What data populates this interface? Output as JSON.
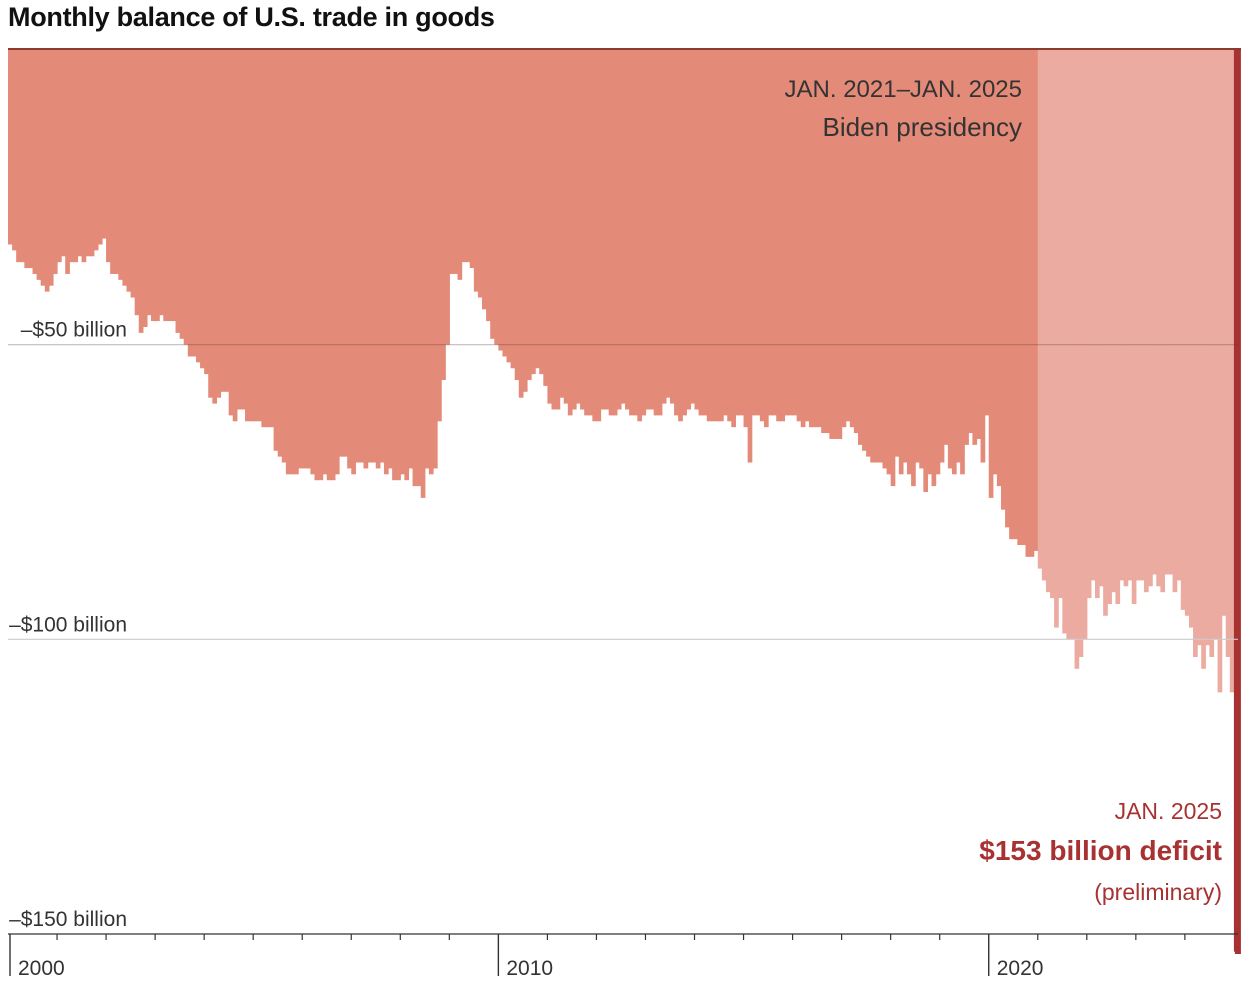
{
  "title": "Monthly balance of U.S. trade in goods",
  "colors": {
    "bar": "#e48a78",
    "biden_bar": "#ecaba1",
    "latest": "#a83232",
    "grid": "#cccccc",
    "axis": "#333333",
    "top_rule": "#8b3a2e"
  },
  "annotations": {
    "biden_dates": "JAN. 2021–JAN. 2025",
    "biden_label": "Biden presidency",
    "latest_date": "JAN. 2025",
    "latest_value": "$153 billion deficit",
    "latest_note": "(preliminary)"
  },
  "chart_data": {
    "type": "bar",
    "title": "Monthly balance of U.S. trade in goods",
    "xlabel": "",
    "ylabel": "",
    "unit": "billion dollars",
    "x_start": "2000-01",
    "x_end": "2025-01",
    "ylim": [
      -150,
      0
    ],
    "yticks": [
      {
        "value": -50,
        "label": "–$50 billion"
      },
      {
        "value": -100,
        "label": "–$100 billion"
      },
      {
        "value": -150,
        "label": "–$150 billion"
      }
    ],
    "xticks": [
      {
        "year": 2000,
        "label": "2000"
      },
      {
        "year": 2010,
        "label": "2010"
      },
      {
        "year": 2020,
        "label": "2020"
      }
    ],
    "highlight": {
      "start": "2021-01",
      "end": "2025-01",
      "label": "Biden presidency"
    },
    "annual_values": [
      {
        "year": 2000,
        "values": [
          -33,
          -34,
          -36,
          -36,
          -37,
          -37,
          -38,
          -39,
          -40,
          -41,
          -40,
          -38
        ]
      },
      {
        "year": 2001,
        "values": [
          -36,
          -35,
          -38,
          -36,
          -36,
          -35,
          -36,
          -35,
          -35,
          -34,
          -33,
          -32
        ]
      },
      {
        "year": 2002,
        "values": [
          -36,
          -38,
          -38,
          -39,
          -40,
          -41,
          -42,
          -45,
          -48,
          -47,
          -45,
          -46
        ]
      },
      {
        "year": 2003,
        "values": [
          -46,
          -45,
          -46,
          -46,
          -46,
          -48,
          -49,
          -50,
          -52,
          -52,
          -53,
          -54
        ]
      },
      {
        "year": 2004,
        "values": [
          -55,
          -59,
          -60,
          -59,
          -58,
          -58,
          -62,
          -63,
          -61,
          -61,
          -63,
          -63
        ]
      },
      {
        "year": 2005,
        "values": [
          -63,
          -63,
          -64,
          -64,
          -64,
          -68,
          -69,
          -70,
          -72,
          -72,
          -72,
          -71
        ]
      },
      {
        "year": 2006,
        "values": [
          -71,
          -71,
          -72,
          -73,
          -73,
          -72,
          -73,
          -73,
          -72,
          -69,
          -69,
          -71
        ]
      },
      {
        "year": 2007,
        "values": [
          -72,
          -70,
          -70,
          -71,
          -70,
          -70,
          -71,
          -70,
          -72,
          -71,
          -73,
          -73
        ]
      },
      {
        "year": 2008,
        "values": [
          -72,
          -73,
          -71,
          -74,
          -74,
          -76,
          -71,
          -72,
          -71,
          -63,
          -56,
          -50
        ]
      },
      {
        "year": 2009,
        "values": [
          -38,
          -38,
          -39,
          -36,
          -36,
          -37,
          -41,
          -42,
          -44,
          -46,
          -49,
          -50
        ]
      },
      {
        "year": 2010,
        "values": [
          -51,
          -52,
          -53,
          -54,
          -56,
          -59,
          -58,
          -56,
          -55,
          -54,
          -55,
          -57
        ]
      },
      {
        "year": 2011,
        "values": [
          -60,
          -61,
          -61,
          -59,
          -60,
          -62,
          -61,
          -60,
          -61,
          -62,
          -62,
          -63
        ]
      },
      {
        "year": 2012,
        "values": [
          -63,
          -61,
          -61,
          -62,
          -62,
          -61,
          -60,
          -61,
          -62,
          -62,
          -63,
          -62
        ]
      },
      {
        "year": 2013,
        "values": [
          -61,
          -61,
          -62,
          -62,
          -60,
          -59,
          -60,
          -62,
          -63,
          -62,
          -61,
          -60
        ]
      },
      {
        "year": 2014,
        "values": [
          -61,
          -62,
          -62,
          -63,
          -63,
          -63,
          -63,
          -62,
          -63,
          -64,
          -62,
          -62
        ]
      },
      {
        "year": 2015,
        "values": [
          -64,
          -70,
          -62,
          -62,
          -63,
          -64,
          -62,
          -62,
          -63,
          -63,
          -62,
          -62
        ]
      },
      {
        "year": 2016,
        "values": [
          -62,
          -63,
          -64,
          -63,
          -64,
          -64,
          -64,
          -65,
          -65,
          -66,
          -66,
          -66
        ]
      },
      {
        "year": 2017,
        "values": [
          -64,
          -63,
          -64,
          -65,
          -67,
          -68,
          -69,
          -70,
          -70,
          -70,
          -71,
          -72
        ]
      },
      {
        "year": 2018,
        "values": [
          -74,
          -69,
          -72,
          -70,
          -72,
          -74,
          -70,
          -71,
          -75,
          -72,
          -74,
          -72
        ]
      },
      {
        "year": 2019,
        "values": [
          -70,
          -67,
          -71,
          -72,
          -70,
          -72,
          -67,
          -65,
          -67,
          -66,
          -70,
          -62
        ]
      },
      {
        "year": 2020,
        "values": [
          -76,
          -72,
          -74,
          -78,
          -81,
          -83,
          -83,
          -84,
          -84,
          -86,
          -86,
          -85
        ]
      },
      {
        "year": 2021,
        "values": [
          -88,
          -90,
          -92,
          -93,
          -98,
          -93,
          -99,
          -100,
          -100,
          -105,
          -103,
          -100
        ]
      },
      {
        "year": 2022,
        "values": [
          -93,
          -90,
          -93,
          -91,
          -96,
          -94,
          -92,
          -94,
          -90,
          -91,
          -90,
          -94
        ]
      },
      {
        "year": 2023,
        "values": [
          -90,
          -90,
          -92,
          -91,
          -89,
          -91,
          -92,
          -89,
          -89,
          -92,
          -90,
          -95
        ]
      },
      {
        "year": 2024,
        "values": [
          -96,
          -98,
          -103,
          -101,
          -105,
          -101,
          -103,
          -100,
          -109,
          -96,
          -103,
          -109
        ]
      },
      {
        "year": 2025,
        "values": [
          -153
        ]
      }
    ]
  }
}
